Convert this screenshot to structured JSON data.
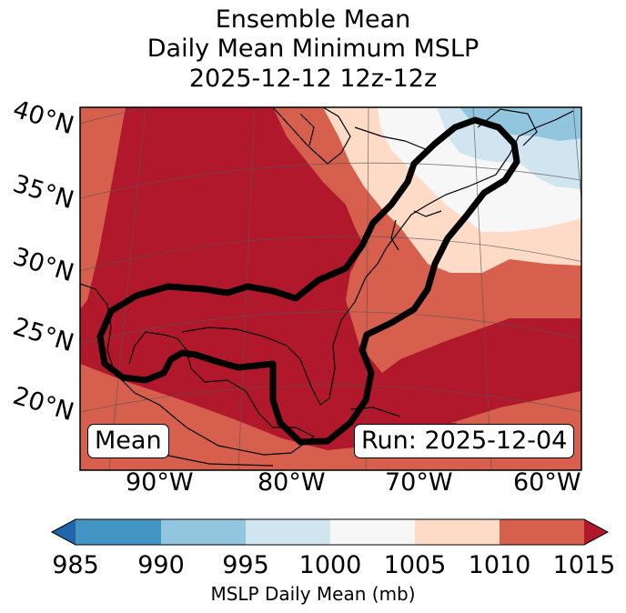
{
  "title": {
    "line1": "Ensemble Mean",
    "line2": "Daily Mean Minimum MSLP",
    "line3": "2025-12-12 12z-12z"
  },
  "map": {
    "lat_labels": [
      "40°N",
      "35°N",
      "30°N",
      "25°N",
      "20°N"
    ],
    "lon_labels": [
      "90°W",
      "80°W",
      "70°W",
      "60°W"
    ],
    "mean_badge": "Mean",
    "run_badge": "Run: 2025-12-04"
  },
  "colorbar": {
    "ticks": [
      "985",
      "990",
      "995",
      "1000",
      "1005",
      "1010",
      "1015"
    ],
    "label": "MSLP Daily Mean (mb)",
    "colors": {
      "below": "#2166ac",
      "985-990": "#4393c3",
      "990-995": "#92c5de",
      "995-1000": "#d1e5f0",
      "1000-1005": "#f7f7f7",
      "1005-1010": "#fddbc7",
      "1010-1015": "#d6604d",
      "above": "#b2182b"
    }
  }
}
